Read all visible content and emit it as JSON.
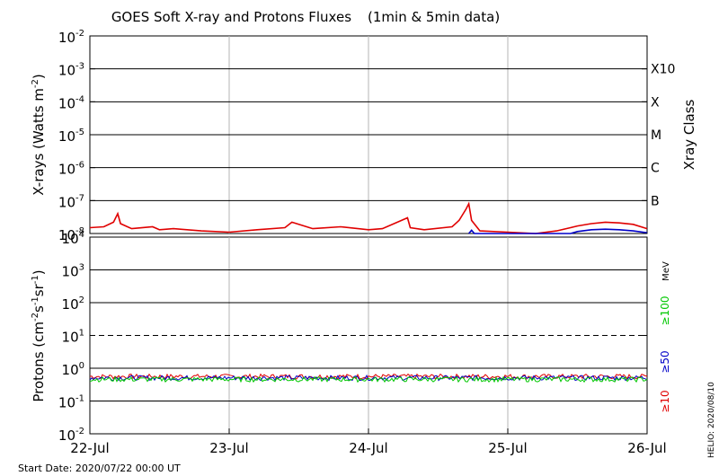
{
  "chart_data": [
    {
      "type": "line",
      "title": "GOES Soft X-ray and Protons Fluxes",
      "subtitle": "(1min & 5min data)",
      "ylabel_base": "X-rays (Watts m",
      "ylabel_exp": "-2",
      "ylabel_close": ")",
      "y_scale": "log",
      "ylim": [
        1e-08,
        0.01
      ],
      "y_ticks": [
        {
          "base": "10",
          "exp": "-2",
          "value": 0.01
        },
        {
          "base": "10",
          "exp": "-3",
          "value": 0.001
        },
        {
          "base": "10",
          "exp": "-4",
          "value": 0.0001
        },
        {
          "base": "10",
          "exp": "-5",
          "value": 1e-05
        },
        {
          "base": "10",
          "exp": "-6",
          "value": 1e-06
        },
        {
          "base": "10",
          "exp": "-7",
          "value": 1e-07
        },
        {
          "base": "10",
          "exp": "-8",
          "value": 1e-08
        }
      ],
      "right_axis_label": "Xray Class",
      "xray_classes": [
        {
          "label": "X10",
          "value": 0.001
        },
        {
          "label": "X",
          "value": 0.0001
        },
        {
          "label": "M",
          "value": 1e-05
        },
        {
          "label": "C",
          "value": 1e-06
        },
        {
          "label": "B",
          "value": 1e-07
        }
      ],
      "grid": true,
      "series": [
        {
          "color": "#e00000",
          "x_days": [
            0,
            0.1,
            0.17,
            0.2,
            0.22,
            0.3,
            0.45,
            0.5,
            0.6,
            0.8,
            1.0,
            1.2,
            1.4,
            1.45,
            1.6,
            1.8,
            2.0,
            2.1,
            2.28,
            2.3,
            2.4,
            2.6,
            2.65,
            2.7,
            2.72,
            2.74,
            2.8,
            3.0,
            3.2,
            3.35,
            3.45,
            3.5,
            3.6,
            3.7,
            3.8,
            3.9,
            4.0
          ],
          "values": [
            1.5e-08,
            1.6e-08,
            2.2e-08,
            4e-08,
            2e-08,
            1.4e-08,
            1.6e-08,
            1.3e-08,
            1.4e-08,
            1.2e-08,
            1.1e-08,
            1.3e-08,
            1.5e-08,
            2.2e-08,
            1.4e-08,
            1.6e-08,
            1.3e-08,
            1.4e-08,
            3e-08,
            1.5e-08,
            1.3e-08,
            1.6e-08,
            2.5e-08,
            5.5e-08,
            8e-08,
            2.5e-08,
            1.2e-08,
            1.1e-08,
            1e-08,
            1.2e-08,
            1.5e-08,
            1.7e-08,
            2e-08,
            2.2e-08,
            2.1e-08,
            1.9e-08,
            1.4e-08
          ]
        },
        {
          "color": "#0000c8",
          "x_days": [
            2.72,
            2.74,
            2.76,
            3.45,
            3.5,
            3.6,
            3.7,
            3.8,
            3.9,
            4.0
          ],
          "values": [
            1e-08,
            1.25e-08,
            1e-08,
            1e-08,
            1.15e-08,
            1.3e-08,
            1.35e-08,
            1.3e-08,
            1.2e-08,
            1.05e-08
          ]
        }
      ]
    },
    {
      "type": "line",
      "ylabel_base": "Protons (cm",
      "ylabel_exp": "-2",
      "ylabel_mid": "s",
      "ylabel_exp2": "-1",
      "ylabel_mid2": "sr",
      "ylabel_exp3": "-1",
      "ylabel_close": ")",
      "y_scale": "log",
      "ylim": [
        0.01,
        10000.0
      ],
      "y_ticks": [
        {
          "base": "10",
          "exp": "4",
          "value": 10000.0
        },
        {
          "base": "10",
          "exp": "3",
          "value": 1000.0
        },
        {
          "base": "10",
          "exp": "2",
          "value": 100.0
        },
        {
          "base": "10",
          "exp": "1",
          "value": 10.0
        },
        {
          "base": "10",
          "exp": "0",
          "value": 1.0
        },
        {
          "base": "10",
          "exp": "-1",
          "value": 0.1
        },
        {
          "base": "10",
          "exp": "-2",
          "value": 0.01
        }
      ],
      "threshold": 10,
      "energy_unit": "MeV",
      "energy_channels": [
        {
          "label": "≥100",
          "color": "#00c800"
        },
        {
          "label": "≥50",
          "color": "#0000c8"
        },
        {
          "label": "≥10",
          "color": "#e00000"
        }
      ],
      "series": [
        {
          "name": "≥10",
          "color": "#e00000",
          "baseline": 0.55
        },
        {
          "name": "≥50",
          "color": "#0000c8",
          "baseline": 0.5
        },
        {
          "name": "≥100",
          "color": "#00c800",
          "baseline": 0.45
        }
      ],
      "x_range_days": [
        0,
        4
      ]
    }
  ],
  "x_tick_labels": [
    "22-Jul",
    "23-Jul",
    "24-Jul",
    "25-Jul",
    "26-Jul"
  ],
  "start_date": "Start Date: 2020/07/22 00:00 UT",
  "credit": "HELIO: 2020/08/10",
  "colors": {
    "axis": "#000000",
    "grid_vertical": "#b4b4b4"
  }
}
